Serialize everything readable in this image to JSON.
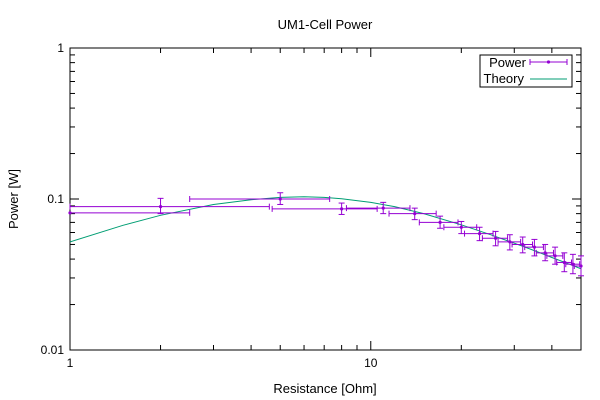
{
  "chart_data": {
    "type": "scatter",
    "title": "UM1-Cell Power",
    "xlabel": "Resistance [Ohm]",
    "ylabel": "Power [W]",
    "x_scale": "log",
    "y_scale": "log",
    "xlim": [
      1,
      50
    ],
    "ylim": [
      0.01,
      1
    ],
    "x_ticks": [
      1,
      10
    ],
    "x_tick_labels": [
      "1",
      "10"
    ],
    "y_ticks": [
      0.01,
      0.1,
      1
    ],
    "y_tick_labels": [
      "0.01",
      "0.1",
      "1"
    ],
    "grid": false,
    "legend_position": "top-right",
    "series": [
      {
        "name": "Power",
        "style": "points-with-xy-errorbars",
        "color": "#9400d3",
        "points": [
          {
            "x": 1.0,
            "y": 0.081,
            "xerr_lo": 0.0,
            "xerr_hi": 1.5,
            "yerr_lo": 0.0,
            "yerr_hi": 0.0
          },
          {
            "x": 2.0,
            "y": 0.089,
            "xerr_lo": 1.0,
            "xerr_hi": 2.6,
            "yerr_lo": 0.009,
            "yerr_hi": 0.012
          },
          {
            "x": 5.0,
            "y": 0.1,
            "xerr_lo": 2.5,
            "xerr_hi": 2.3,
            "yerr_lo": 0.008,
            "yerr_hi": 0.01
          },
          {
            "x": 8.0,
            "y": 0.086,
            "xerr_lo": 3.3,
            "xerr_hi": 2.5,
            "yerr_lo": 0.007,
            "yerr_hi": 0.008
          },
          {
            "x": 11.0,
            "y": 0.087,
            "xerr_lo": 2.7,
            "xerr_hi": 2.5,
            "yerr_lo": 0.007,
            "yerr_hi": 0.008
          },
          {
            "x": 14.0,
            "y": 0.08,
            "xerr_lo": 2.5,
            "xerr_hi": 2.5,
            "yerr_lo": 0.007,
            "yerr_hi": 0.007
          },
          {
            "x": 17.0,
            "y": 0.07,
            "xerr_lo": 2.5,
            "xerr_hi": 2.5,
            "yerr_lo": 0.006,
            "yerr_hi": 0.007
          },
          {
            "x": 20.0,
            "y": 0.065,
            "xerr_lo": 2.5,
            "xerr_hi": 2.5,
            "yerr_lo": 0.006,
            "yerr_hi": 0.006
          },
          {
            "x": 23.0,
            "y": 0.059,
            "xerr_lo": 2.5,
            "xerr_hi": 2.5,
            "yerr_lo": 0.006,
            "yerr_hi": 0.006
          },
          {
            "x": 26.0,
            "y": 0.055,
            "xerr_lo": 2.5,
            "xerr_hi": 2.5,
            "yerr_lo": 0.006,
            "yerr_hi": 0.006
          },
          {
            "x": 29.0,
            "y": 0.052,
            "xerr_lo": 2.5,
            "xerr_hi": 2.5,
            "yerr_lo": 0.006,
            "yerr_hi": 0.006
          },
          {
            "x": 32.0,
            "y": 0.05,
            "xerr_lo": 2.5,
            "xerr_hi": 2.5,
            "yerr_lo": 0.006,
            "yerr_hi": 0.006
          },
          {
            "x": 35.0,
            "y": 0.048,
            "xerr_lo": 2.5,
            "xerr_hi": 2.5,
            "yerr_lo": 0.006,
            "yerr_hi": 0.006
          },
          {
            "x": 38.0,
            "y": 0.044,
            "xerr_lo": 2.5,
            "xerr_hi": 2.5,
            "yerr_lo": 0.005,
            "yerr_hi": 0.006
          },
          {
            "x": 41.0,
            "y": 0.042,
            "xerr_lo": 2.5,
            "xerr_hi": 2.5,
            "yerr_lo": 0.005,
            "yerr_hi": 0.006
          },
          {
            "x": 44.0,
            "y": 0.038,
            "xerr_lo": 2.5,
            "xerr_hi": 2.5,
            "yerr_lo": 0.005,
            "yerr_hi": 0.006
          },
          {
            "x": 47.0,
            "y": 0.037,
            "xerr_lo": 2.5,
            "xerr_hi": 2.5,
            "yerr_lo": 0.005,
            "yerr_hi": 0.006
          },
          {
            "x": 50.0,
            "y": 0.036,
            "xerr_lo": 2.5,
            "xerr_hi": 2.5,
            "yerr_lo": 0.005,
            "yerr_hi": 0.006
          }
        ]
      },
      {
        "name": "Theory",
        "style": "line",
        "color": "#009e73",
        "x": [
          1,
          1.5,
          2,
          3,
          4,
          5,
          6,
          7,
          8,
          10,
          12,
          15,
          20,
          25,
          30,
          35,
          40,
          45,
          50
        ],
        "y": [
          0.052,
          0.067,
          0.078,
          0.092,
          0.099,
          0.1025,
          0.1035,
          0.1025,
          0.1005,
          0.095,
          0.089,
          0.08,
          0.0675,
          0.058,
          0.051,
          0.0455,
          0.041,
          0.0375,
          0.0345
        ]
      }
    ]
  }
}
